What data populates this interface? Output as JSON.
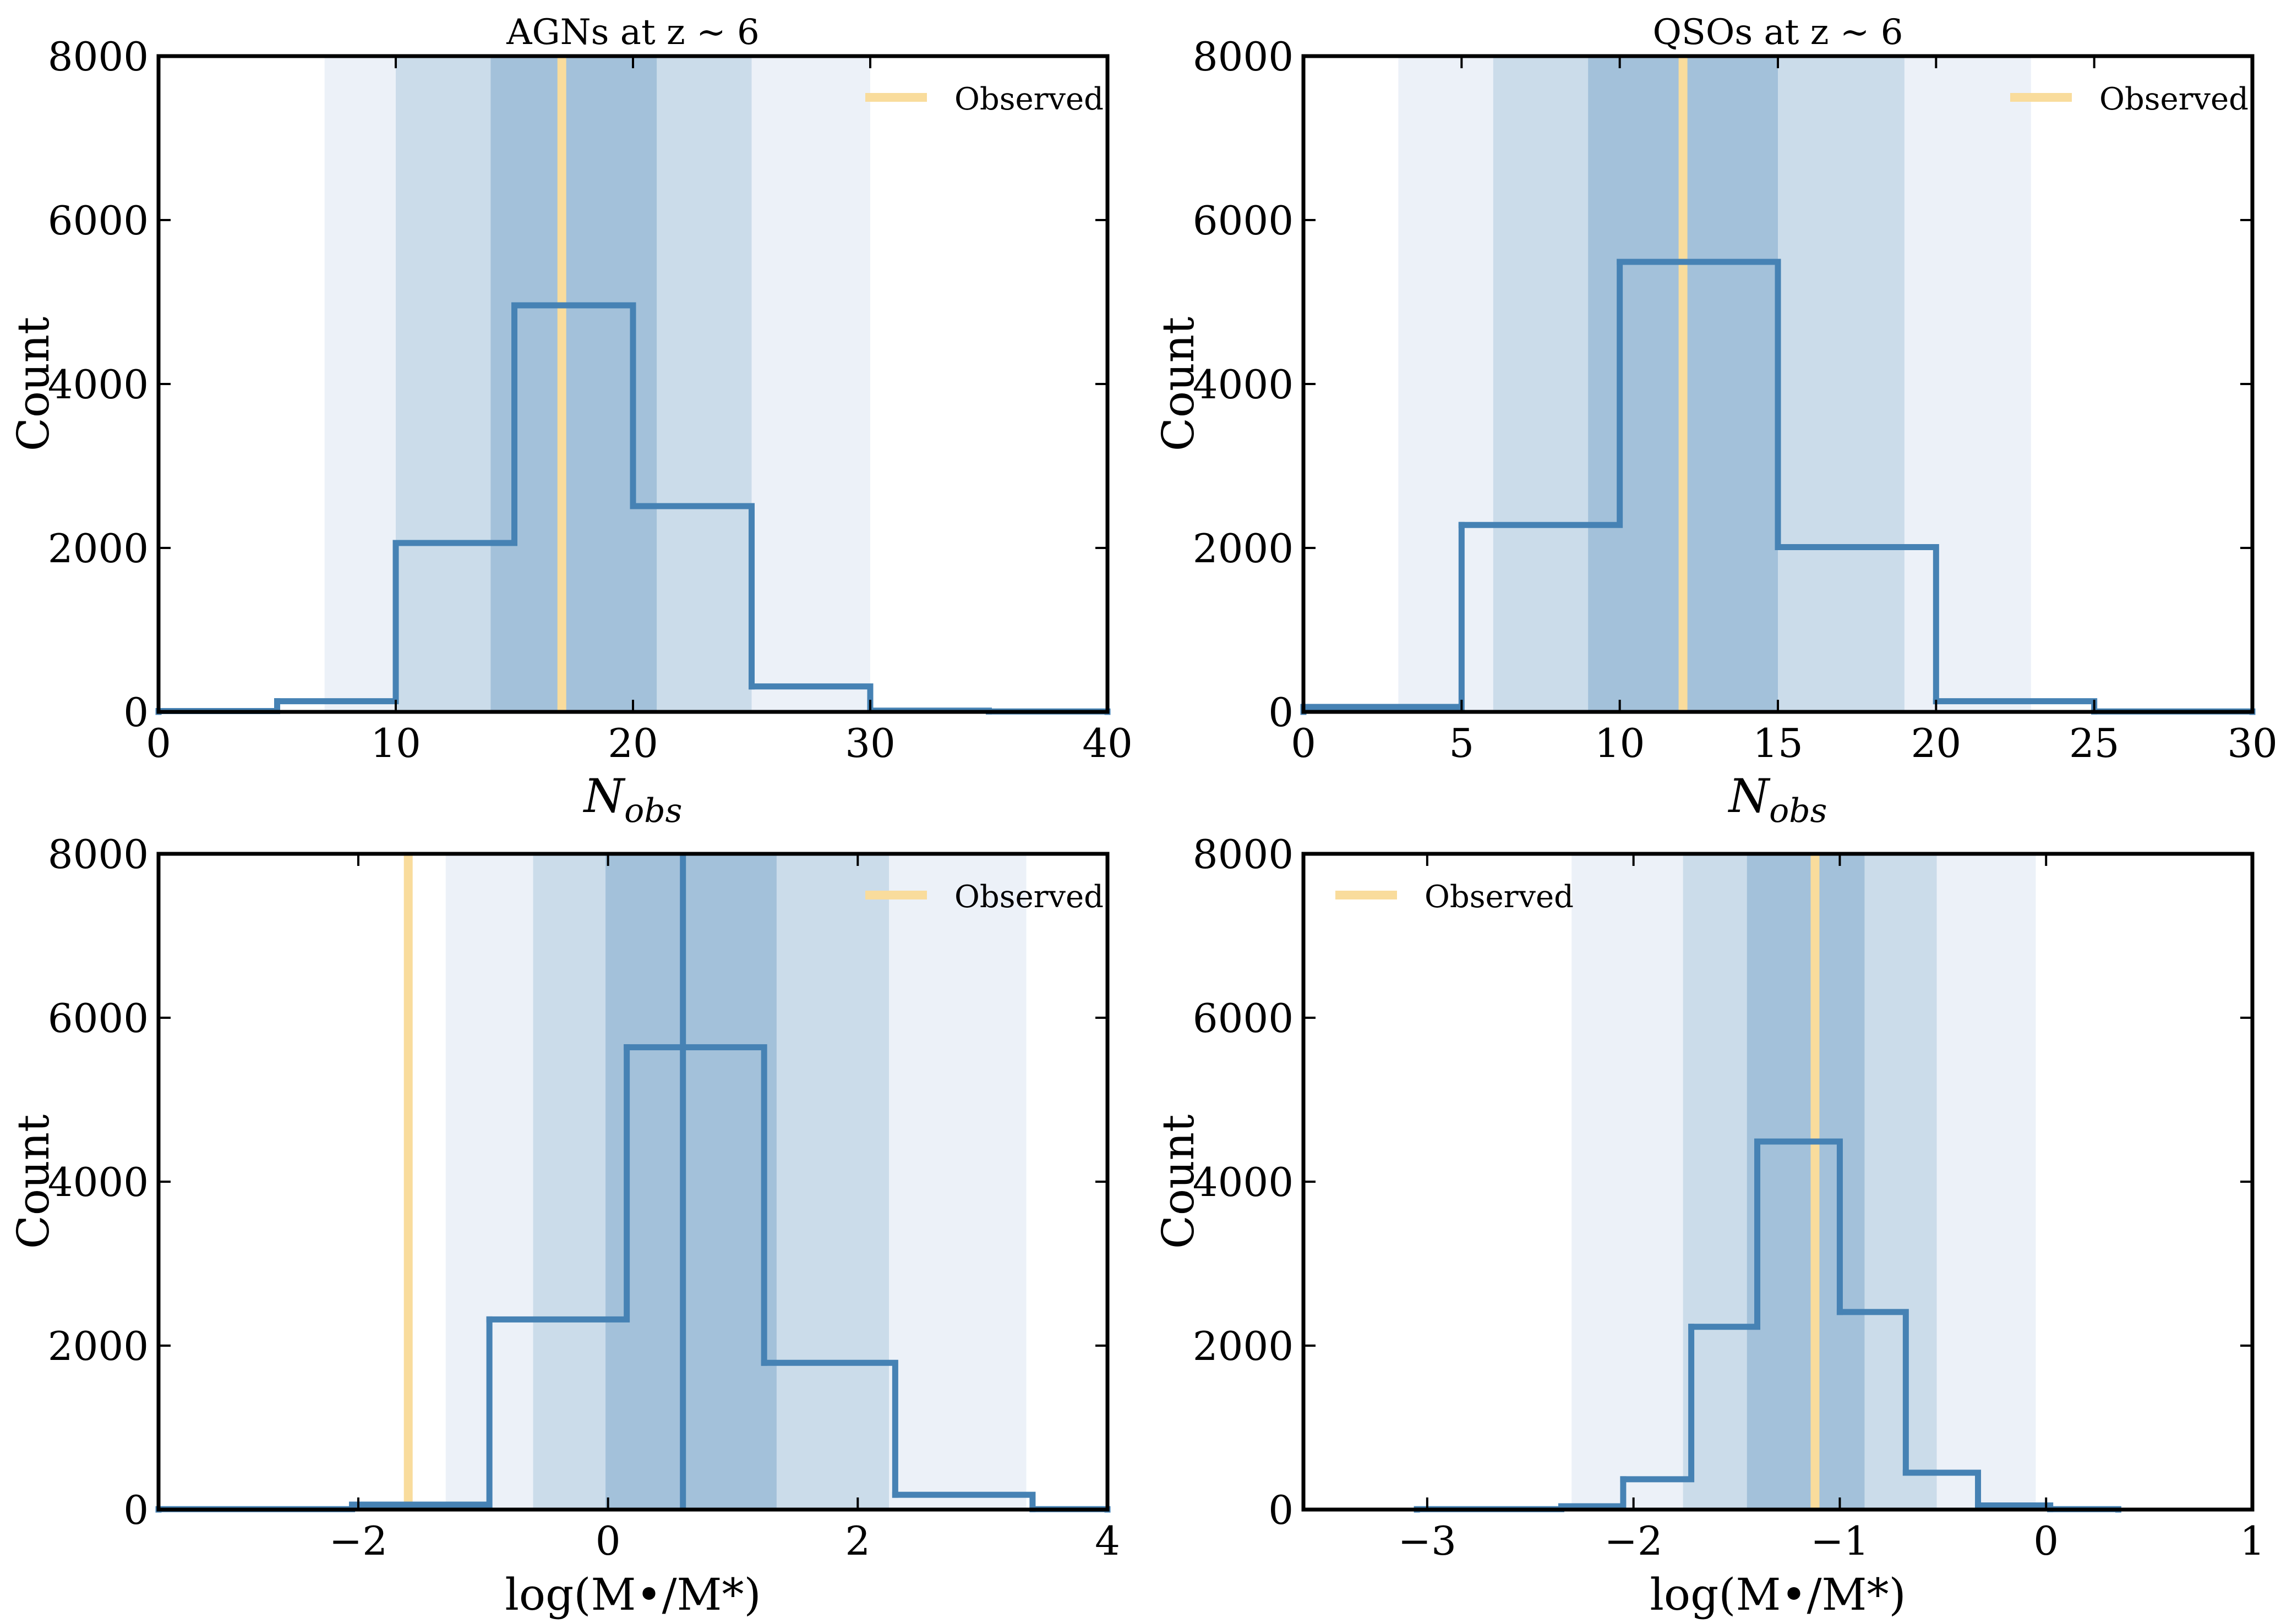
{
  "colors": {
    "hist": "#4682b4",
    "observed": "#f9dc9c",
    "band_outer": "#ecf1f8",
    "band_mid": "#cbdcea",
    "band_inner": "#a3c1da",
    "axis": "#000000"
  },
  "chart_data": [
    {
      "type": "histogram",
      "title": "AGNs at z ∼ 6",
      "xlabel": "N",
      "xlabel_sub": "obs",
      "ylabel": "Count",
      "xlim": [
        0,
        40
      ],
      "ylim": [
        0,
        8000
      ],
      "xticks": [
        0,
        10,
        20,
        30,
        40
      ],
      "xtick_labels": [
        "0",
        "10",
        "20",
        "30",
        "40"
      ],
      "yticks": [
        0,
        2000,
        4000,
        6000,
        8000
      ],
      "ytick_labels": [
        "0",
        "2000",
        "4000",
        "6000",
        "8000"
      ],
      "bin_edges": [
        0,
        5,
        10,
        15,
        20,
        25,
        30,
        35,
        40
      ],
      "counts": [
        10,
        130,
        2060,
        4960,
        2510,
        310,
        15,
        5
      ],
      "bands": {
        "outer": [
          7,
          30
        ],
        "mid": [
          10,
          25
        ],
        "inner": [
          14,
          21
        ]
      },
      "median": null,
      "observed": 17,
      "legend_label": "Observed",
      "legend_loc": "top-right"
    },
    {
      "type": "histogram",
      "title": "QSOs at z ∼ 6",
      "xlabel": "N",
      "xlabel_sub": "obs",
      "ylabel": "Count",
      "xlim": [
        0,
        30
      ],
      "ylim": [
        0,
        8000
      ],
      "xticks": [
        0,
        5,
        10,
        15,
        20,
        25,
        30
      ],
      "xtick_labels": [
        "0",
        "5",
        "10",
        "15",
        "20",
        "25",
        "30"
      ],
      "yticks": [
        0,
        2000,
        4000,
        6000,
        8000
      ],
      "ytick_labels": [
        "0",
        "2000",
        "4000",
        "6000",
        "8000"
      ],
      "bin_edges": [
        0,
        5,
        10,
        15,
        20,
        25,
        30
      ],
      "counts": [
        60,
        2280,
        5490,
        2010,
        130,
        5
      ],
      "bands": {
        "outer": [
          3,
          23
        ],
        "mid": [
          6,
          19
        ],
        "inner": [
          9,
          15
        ]
      },
      "median": null,
      "observed": 12,
      "legend_label": "Observed",
      "legend_loc": "top-right"
    },
    {
      "type": "histogram",
      "title": "",
      "xlabel": "log(M•/M*)",
      "xlabel_sub": "",
      "ylabel": "Count",
      "xlim": [
        -3.6,
        4
      ],
      "ylim": [
        0,
        8000
      ],
      "xticks": [
        -2,
        0,
        2,
        4
      ],
      "xtick_labels": [
        "−2",
        "0",
        "2",
        "4"
      ],
      "yticks": [
        0,
        2000,
        4000,
        6000,
        8000
      ],
      "ytick_labels": [
        "0",
        "2000",
        "4000",
        "6000",
        "8000"
      ],
      "bin_edges": [
        -3.6,
        -2.05,
        -0.95,
        0.15,
        1.25,
        2.3,
        3.4,
        4
      ],
      "counts": [
        5,
        60,
        2320,
        5640,
        1790,
        180,
        5
      ],
      "bands": {
        "outer": [
          -1.3,
          3.35
        ],
        "mid": [
          -0.6,
          2.25
        ],
        "inner": [
          -0.02,
          1.35
        ]
      },
      "median": 0.6,
      "observed": -1.6,
      "legend_label": "Observed",
      "legend_loc": "top-right"
    },
    {
      "type": "histogram",
      "title": "",
      "xlabel": "log(M•/M*)",
      "xlabel_sub": "",
      "ylabel": "Count",
      "xlim": [
        -3.6,
        1
      ],
      "ylim": [
        0,
        8000
      ],
      "xticks": [
        -3,
        -2,
        -1,
        0,
        1
      ],
      "xtick_labels": [
        "−3",
        "−2",
        "−1",
        "0",
        "1"
      ],
      "yticks": [
        0,
        2000,
        4000,
        6000,
        8000
      ],
      "ytick_labels": [
        "0",
        "2000",
        "4000",
        "6000",
        "8000"
      ],
      "bin_edges": [
        -3.05,
        -2.35,
        -2.05,
        -1.72,
        -1.4,
        -1.0,
        -0.68,
        -0.33,
        0.02,
        0.35
      ],
      "counts": [
        5,
        40,
        370,
        2230,
        4490,
        2410,
        450,
        50,
        5
      ],
      "bands": {
        "outer": [
          -2.3,
          -0.05
        ],
        "mid": [
          -1.76,
          -0.53
        ],
        "inner": [
          -1.45,
          -0.88
        ]
      },
      "median": null,
      "observed": -1.12,
      "legend_label": "Observed",
      "legend_loc": "top-left"
    }
  ]
}
